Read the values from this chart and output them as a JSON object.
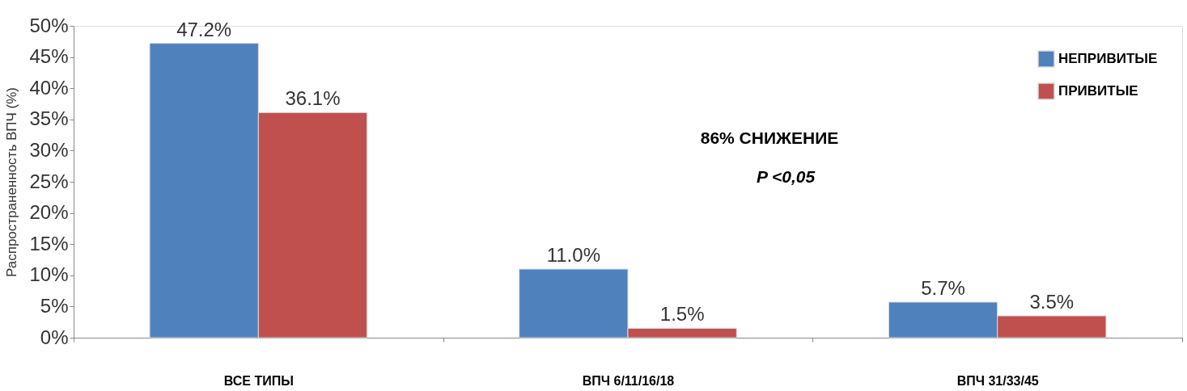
{
  "chart_data": {
    "type": "bar",
    "ylabel": "Распространенность ВПЧ (%)",
    "categories": [
      "ВСЕ ТИПЫ",
      "ВПЧ 6/11/16/18",
      "ВПЧ 31/33/45"
    ],
    "series": [
      {
        "name": "НЕПРИВИТЫЕ",
        "color": "#4f81bd",
        "values": [
          47.2,
          11.0,
          5.7
        ],
        "value_labels": [
          "47.2%",
          "11.0%",
          "5.7%"
        ]
      },
      {
        "name": "ПРИВИТЫЕ",
        "color": "#c0504d",
        "values": [
          36.1,
          1.5,
          3.5
        ],
        "value_labels": [
          "36.1%",
          "1.5%",
          "3.5%"
        ]
      }
    ],
    "ylim": [
      0,
      50
    ],
    "yticks": [
      {
        "value": 0,
        "label": "0%"
      },
      {
        "value": 5,
        "label": "5%"
      },
      {
        "value": 10,
        "label": "10%"
      },
      {
        "value": 15,
        "label": "15%"
      },
      {
        "value": 20,
        "label": "20%"
      },
      {
        "value": 25,
        "label": "25%"
      },
      {
        "value": 30,
        "label": "30%"
      },
      {
        "value": 35,
        "label": "35%"
      },
      {
        "value": 40,
        "label": "40%"
      },
      {
        "value": 45,
        "label": "45%"
      },
      {
        "value": 50,
        "label": "50%"
      }
    ],
    "annotations": [
      "86% СНИЖЕНИЕ",
      "P <0,05"
    ],
    "grid": false,
    "legend": "top right"
  }
}
